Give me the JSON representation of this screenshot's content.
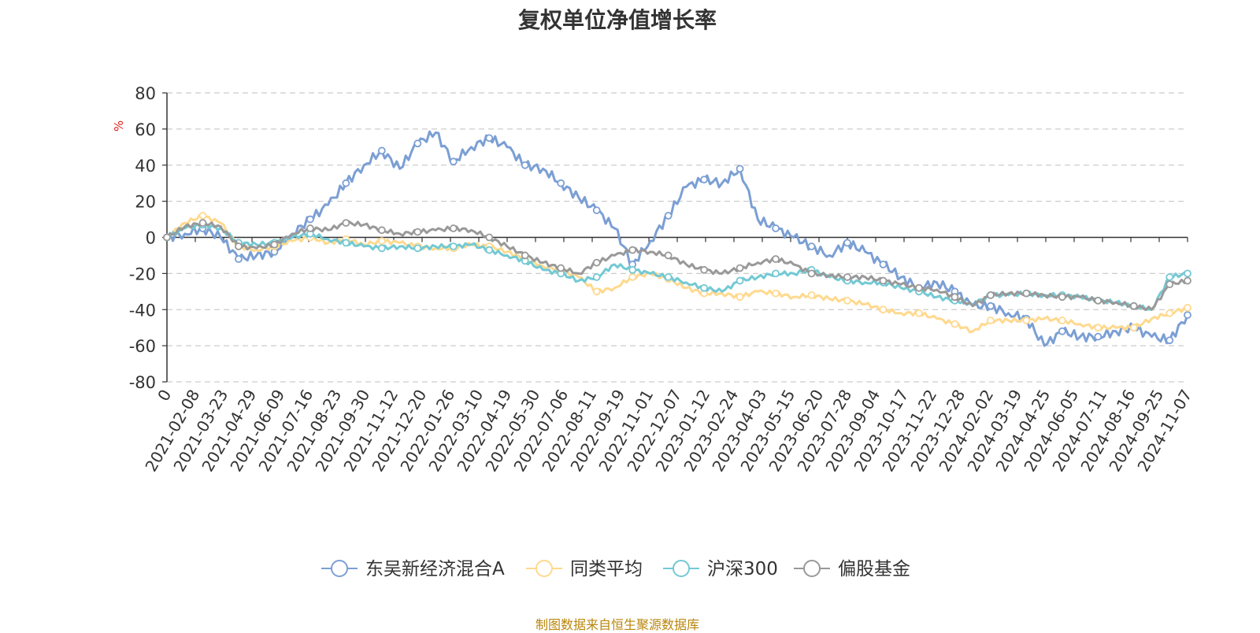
{
  "chart_data": {
    "type": "line",
    "title": "复权单位净值增长率",
    "ylabel": "%",
    "xlabel": "",
    "ylim": [
      -80,
      80
    ],
    "y_ticks": [
      80,
      60,
      40,
      20,
      0,
      -20,
      -40,
      -60,
      -80
    ],
    "grid": true,
    "legend_position": "bottom",
    "x_tick_labels": [
      "0",
      "2021-02-08",
      "2021-03-23",
      "2021-04-29",
      "2021-06-09",
      "2021-07-16",
      "2021-08-23",
      "2021-09-30",
      "2021-11-12",
      "2021-12-20",
      "2022-01-26",
      "2022-03-10",
      "2022-04-19",
      "2022-05-30",
      "2022-07-06",
      "2022-08-11",
      "2022-09-19",
      "2022-11-01",
      "2022-12-07",
      "2023-01-12",
      "2023-02-24",
      "2023-04-03",
      "2023-05-15",
      "2023-06-20",
      "2023-07-28",
      "2023-09-04",
      "2023-10-17",
      "2023-11-22",
      "2023-12-28",
      "2024-02-02",
      "2024-03-19",
      "2024-04-25",
      "2024-06-05",
      "2024-07-11",
      "2024-08-16",
      "2024-09-25",
      "2024-11-07"
    ],
    "series": [
      {
        "name": "东吴新经济混合A",
        "color": "#7b9fd4",
        "values": [
          0,
          2,
          5,
          0,
          -12,
          -10,
          -8,
          2,
          10,
          18,
          30,
          40,
          48,
          38,
          52,
          58,
          42,
          50,
          55,
          50,
          40,
          38,
          30,
          22,
          15,
          5,
          -15,
          -2,
          12,
          28,
          32,
          30,
          38,
          10,
          5,
          0,
          -5,
          -10,
          -3,
          -8,
          -15,
          -22,
          -28,
          -25,
          -30,
          -38,
          -38,
          -42,
          -45,
          -60,
          -52,
          -55,
          -55,
          -52,
          -50,
          -55,
          -57,
          -43
        ]
      },
      {
        "name": "同类平均",
        "color": "#ffd98e",
        "values": [
          0,
          8,
          12,
          8,
          -5,
          -7,
          -5,
          -2,
          0,
          -3,
          -1,
          -4,
          -2,
          -3,
          -5,
          -6,
          -6,
          -4,
          -5,
          -8,
          -12,
          -16,
          -18,
          -22,
          -30,
          -28,
          -22,
          -20,
          -23,
          -28,
          -31,
          -31,
          -33,
          -30,
          -31,
          -33,
          -32,
          -34,
          -35,
          -37,
          -40,
          -42,
          -42,
          -45,
          -48,
          -52,
          -46,
          -46,
          -46,
          -45,
          -46,
          -48,
          -50,
          -50,
          -50,
          -45,
          -42,
          -39
        ]
      },
      {
        "name": "沪深300",
        "color": "#73c9d4",
        "values": [
          0,
          5,
          7,
          5,
          -3,
          -4,
          -3,
          0,
          2,
          -1,
          -3,
          -5,
          -6,
          -5,
          -6,
          -5,
          -5,
          -4,
          -7,
          -10,
          -13,
          -18,
          -20,
          -24,
          -22,
          -15,
          -18,
          -20,
          -22,
          -25,
          -28,
          -30,
          -24,
          -22,
          -20,
          -20,
          -18,
          -22,
          -24,
          -25,
          -25,
          -28,
          -30,
          -33,
          -35,
          -37,
          -32,
          -32,
          -31,
          -32,
          -32,
          -33,
          -35,
          -36,
          -38,
          -40,
          -22,
          -20
        ]
      },
      {
        "name": "偏股基金",
        "color": "#999999",
        "values": [
          0,
          6,
          8,
          6,
          -5,
          -6,
          -4,
          2,
          5,
          4,
          8,
          7,
          4,
          2,
          3,
          4,
          5,
          4,
          0,
          -5,
          -10,
          -14,
          -17,
          -20,
          -14,
          -10,
          -7,
          -8,
          -10,
          -15,
          -18,
          -20,
          -17,
          -14,
          -12,
          -15,
          -20,
          -21,
          -22,
          -22,
          -24,
          -26,
          -28,
          -29,
          -33,
          -38,
          -32,
          -31,
          -31,
          -32,
          -33,
          -33,
          -35,
          -36,
          -38,
          -40,
          -26,
          -24
        ]
      }
    ]
  },
  "source_note": "制图数据来自恒生聚源数据库"
}
